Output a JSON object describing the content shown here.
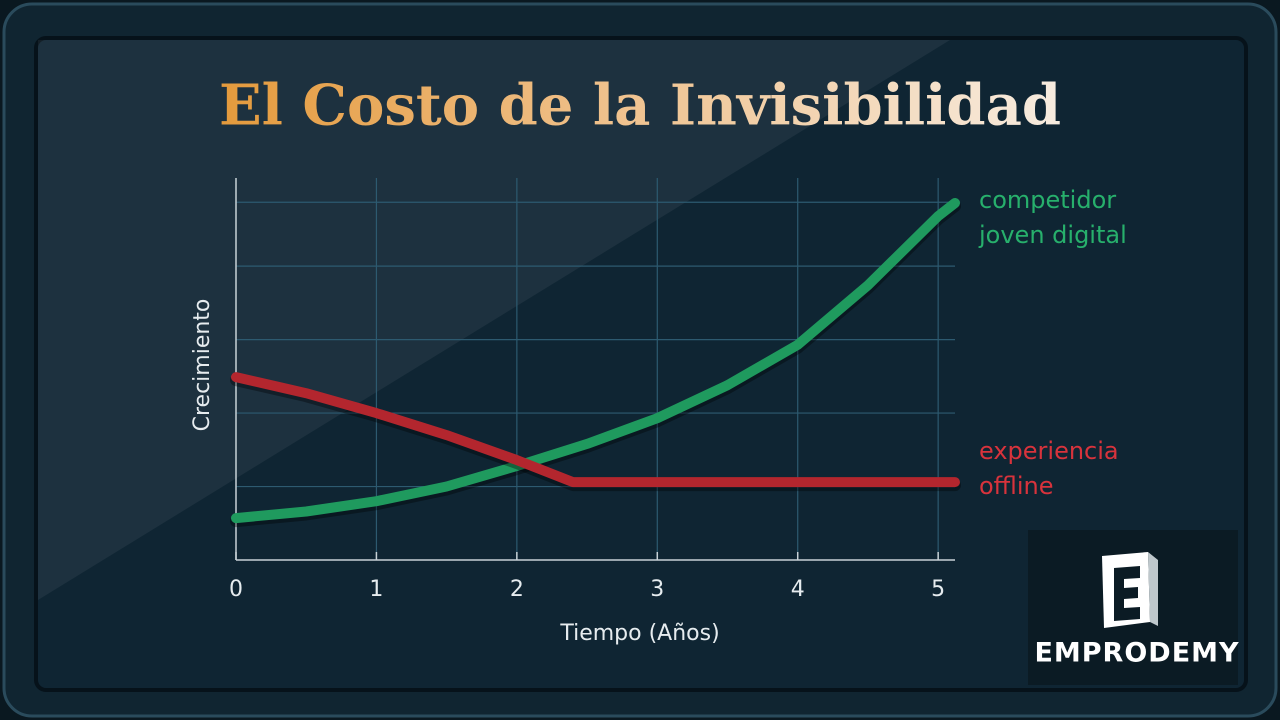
{
  "chart_data": {
    "type": "line",
    "title": "El Costo de la Invisibilidad",
    "xlabel": "Tiempo (Años)",
    "ylabel": "Crecimiento",
    "xlim": [
      0,
      5.12
    ],
    "xticks": [
      0,
      1,
      2,
      3,
      4,
      5
    ],
    "ylim": [
      0,
      5.2
    ],
    "ygrid": [
      1,
      2,
      3,
      4,
      4.87
    ],
    "grid": true,
    "series": [
      {
        "name": "competidor joven digital",
        "color": "#1f9a5e",
        "x": [
          0,
          0.5,
          1,
          1.5,
          2,
          2.5,
          3,
          3.5,
          4,
          4.5,
          5,
          5.12
        ],
        "values": [
          0.57,
          0.66,
          0.8,
          1.0,
          1.28,
          1.58,
          1.93,
          2.38,
          2.93,
          3.74,
          4.68,
          4.86
        ]
      },
      {
        "name": "experiencia offline",
        "color": "#b3262e",
        "x": [
          0,
          0.5,
          1,
          1.5,
          2,
          2.4,
          3,
          4,
          5,
          5.12
        ],
        "values": [
          2.49,
          2.27,
          2.0,
          1.7,
          1.36,
          1.06,
          1.06,
          1.06,
          1.06,
          1.06
        ]
      }
    ],
    "logo": "EMPRODEMY"
  }
}
